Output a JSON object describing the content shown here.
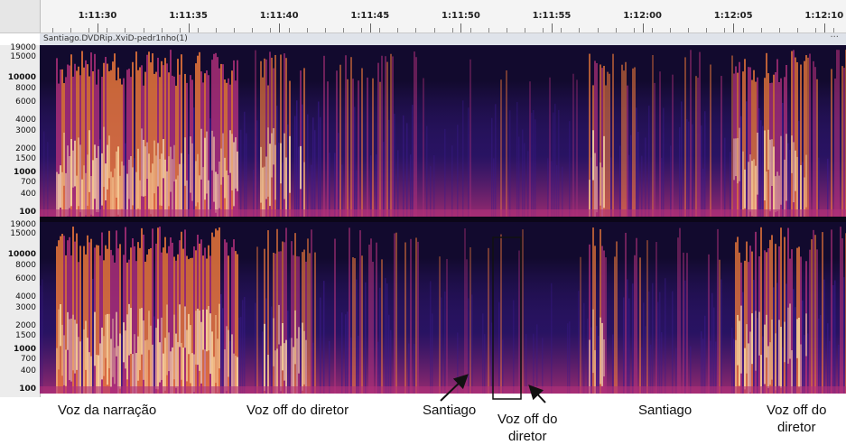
{
  "ruler": {
    "ticks": [
      "1:11:30",
      "1:11:35",
      "1:11:40",
      "1:11:45",
      "1:11:50",
      "1:11:55",
      "1:12:00",
      "1:12:05",
      "1:12:10"
    ]
  },
  "track": {
    "name": "Santiago.DVDRip.XviD-pedr1nho(1)",
    "menu": "···"
  },
  "frequency_axis": {
    "labels": [
      "19000",
      "15000",
      "10000",
      "8000",
      "6000",
      "4000",
      "3000",
      "2000",
      "1500",
      "1000",
      "700",
      "400",
      "100"
    ]
  },
  "annotations": {
    "voz_narracao": "Voz da narração",
    "voz_off_1": "Voz off do diretor",
    "santiago_1": "Santiago",
    "voz_off_2_line1": "Voz off do",
    "voz_off_2_line2": "diretor",
    "santiago_2": "Santiago",
    "voz_off_3_line1": "Voz off do",
    "voz_off_3_line2": "diretor"
  },
  "colors": {
    "spectrogram_background": "#120a2e",
    "spectrogram_low": "#3b1a8c",
    "spectrogram_mid": "#b0307a",
    "spectrogram_high": "#f07a3a",
    "spectrogram_peak": "#ffe9b0"
  }
}
